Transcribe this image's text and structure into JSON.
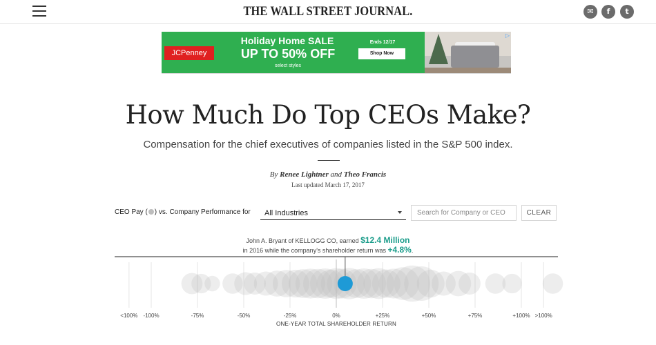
{
  "header": {
    "masthead": "THE WALL STREET JOURNAL.",
    "social": [
      {
        "name": "email-icon",
        "glyph": "✉"
      },
      {
        "name": "facebook-icon",
        "glyph": "f"
      },
      {
        "name": "twitter-icon",
        "glyph": "t"
      }
    ]
  },
  "ad": {
    "brand": "JCPenney",
    "title": "Holiday Home SALE",
    "offer": "UP TO 50% OFF",
    "subtitle": "select styles",
    "ends": "Ends 12/17",
    "cta": "Shop Now",
    "background": "#2faf50"
  },
  "article": {
    "headline": "How Much Do Top CEOs Make?",
    "dek": "Compensation for the chief executives of companies listed in the S&P 500 index.",
    "byline_prefix": "By",
    "author1": "Renee Lightner",
    "byline_and": "and",
    "author2": "Theo Francis",
    "updated": "Last updated March 17, 2017"
  },
  "controls": {
    "label_start": "CEO Pay (",
    "label_end": ") vs. Company Performance for",
    "industry": "All Industries",
    "search_placeholder": "Search for Company or CEO",
    "clear_label": "CLEAR"
  },
  "tooltip": {
    "line1_prefix": "John A. Bryant of KELLOGG CO, earned",
    "pay": "$12.4 Million",
    "line2_prefix": "in 2016 while the company's shareholder return was",
    "return": "+4.8%",
    "line2_suffix": "."
  },
  "chart_data": {
    "type": "scatter",
    "xlabel": "ONE-YEAR TOTAL SHAREHOLDER RETURN",
    "xlim": [
      -125,
      125
    ],
    "ticks": [
      {
        "value": -112,
        "label": "<100%"
      },
      {
        "value": -100,
        "label": "-100%"
      },
      {
        "value": -75,
        "label": "-75%"
      },
      {
        "value": -50,
        "label": "-50%"
      },
      {
        "value": -25,
        "label": "-25%"
      },
      {
        "value": 0,
        "label": "0%"
      },
      {
        "value": 25,
        "label": "+25%"
      },
      {
        "value": 50,
        "label": "+50%"
      },
      {
        "value": 75,
        "label": "+75%"
      },
      {
        "value": 100,
        "label": "+100%"
      },
      {
        "value": 112,
        "label": ">100%"
      }
    ],
    "highlight": {
      "return": 4.8,
      "pay_millions": 12.4,
      "color": "#1e9ad6"
    },
    "bubbles": [
      {
        "return": -78,
        "pay": 10
      },
      {
        "return": -73,
        "pay": 8
      },
      {
        "return": -67,
        "pay": 4
      },
      {
        "return": -56,
        "pay": 9
      },
      {
        "return": -49,
        "pay": 12
      },
      {
        "return": -44,
        "pay": 11
      },
      {
        "return": -38,
        "pay": 14
      },
      {
        "return": -32,
        "pay": 17
      },
      {
        "return": -27,
        "pay": 19
      },
      {
        "return": -22,
        "pay": 20
      },
      {
        "return": -18,
        "pay": 22
      },
      {
        "return": -14,
        "pay": 24
      },
      {
        "return": -10,
        "pay": 23
      },
      {
        "return": -6,
        "pay": 25
      },
      {
        "return": -3,
        "pay": 21
      },
      {
        "return": 0,
        "pay": 26
      },
      {
        "return": 3,
        "pay": 24
      },
      {
        "return": 7,
        "pay": 27
      },
      {
        "return": 11,
        "pay": 22
      },
      {
        "return": 15,
        "pay": 25
      },
      {
        "return": 19,
        "pay": 23
      },
      {
        "return": 23,
        "pay": 26
      },
      {
        "return": 27,
        "pay": 21
      },
      {
        "return": 31,
        "pay": 24
      },
      {
        "return": 36,
        "pay": 30
      },
      {
        "return": 41,
        "pay": 38
      },
      {
        "return": 46,
        "pay": 34
      },
      {
        "return": 51,
        "pay": 20
      },
      {
        "return": 58,
        "pay": 14
      },
      {
        "return": 66,
        "pay": 16
      },
      {
        "return": 72,
        "pay": 11
      },
      {
        "return": 86,
        "pay": 9
      },
      {
        "return": 95,
        "pay": 8
      },
      {
        "return": 117,
        "pay": 9
      }
    ]
  }
}
